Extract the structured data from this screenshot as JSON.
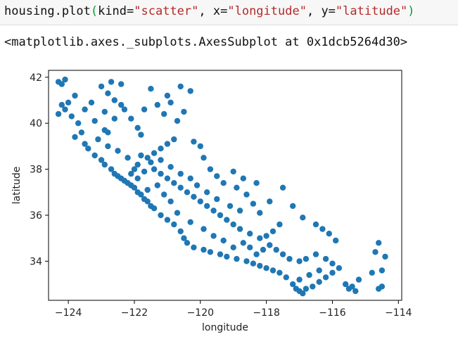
{
  "code_cell": {
    "prefix": "housing.plot",
    "open_paren": "(",
    "kwarg_kind": "kind=",
    "kind_value": "\"scatter\"",
    "comma1": ", ",
    "kwarg_x": "x=",
    "x_value": "\"longitude\"",
    "comma2": ", ",
    "kwarg_y": "y=",
    "y_value": "\"latitude\"",
    "close_paren": ")"
  },
  "output": {
    "text": "<matplotlib.axes._subplots.AxesSubplot at 0x1dcb5264d30>"
  },
  "chart_data": {
    "type": "scatter",
    "xlabel": "longitude",
    "ylabel": "latitude",
    "xlim": [
      -124.6,
      -113.9
    ],
    "ylim": [
      32.3,
      42.3
    ],
    "xticks": [
      -124,
      -122,
      -120,
      -118,
      -116,
      -114
    ],
    "yticks": [
      34,
      36,
      38,
      40,
      42
    ],
    "xtick_labels": [
      "−124",
      "−122",
      "−120",
      "−118",
      "−116",
      "−114"
    ],
    "ytick_labels": [
      "34",
      "36",
      "38",
      "40",
      "42"
    ],
    "marker_color": "#1f77b4",
    "grid": false,
    "series": [
      {
        "points": [
          [
            -124.3,
            41.8
          ],
          [
            -124.2,
            41.7
          ],
          [
            -124.1,
            41.9
          ],
          [
            -124.2,
            40.8
          ],
          [
            -124.3,
            40.4
          ],
          [
            -124.1,
            40.6
          ],
          [
            -124.0,
            40.9
          ],
          [
            -123.8,
            41.2
          ],
          [
            -123.9,
            40.3
          ],
          [
            -123.7,
            40.0
          ],
          [
            -123.6,
            39.6
          ],
          [
            -123.8,
            39.4
          ],
          [
            -123.5,
            39.1
          ],
          [
            -123.4,
            38.9
          ],
          [
            -123.2,
            38.6
          ],
          [
            -123.0,
            38.4
          ],
          [
            -122.9,
            38.2
          ],
          [
            -122.7,
            38.0
          ],
          [
            -122.6,
            37.8
          ],
          [
            -122.5,
            37.7
          ],
          [
            -122.4,
            37.6
          ],
          [
            -122.3,
            37.5
          ],
          [
            -122.2,
            37.4
          ],
          [
            -122.1,
            37.3
          ],
          [
            -122.0,
            37.2
          ],
          [
            -121.9,
            37.0
          ],
          [
            -121.8,
            36.9
          ],
          [
            -121.7,
            36.7
          ],
          [
            -121.6,
            36.6
          ],
          [
            -121.5,
            36.4
          ],
          [
            -121.4,
            36.3
          ],
          [
            -121.2,
            36.0
          ],
          [
            -121.0,
            35.8
          ],
          [
            -120.8,
            35.6
          ],
          [
            -120.6,
            35.3
          ],
          [
            -120.5,
            35.0
          ],
          [
            -120.4,
            34.8
          ],
          [
            -120.2,
            34.6
          ],
          [
            -119.9,
            34.5
          ],
          [
            -119.7,
            34.4
          ],
          [
            -119.4,
            34.3
          ],
          [
            -119.2,
            34.2
          ],
          [
            -118.9,
            34.1
          ],
          [
            -118.6,
            34.0
          ],
          [
            -118.4,
            33.9
          ],
          [
            -118.2,
            33.8
          ],
          [
            -118.0,
            33.7
          ],
          [
            -117.8,
            33.6
          ],
          [
            -117.6,
            33.5
          ],
          [
            -117.4,
            33.3
          ],
          [
            -117.2,
            33.0
          ],
          [
            -117.1,
            32.8
          ],
          [
            -117.0,
            32.7
          ],
          [
            -116.9,
            32.6
          ],
          [
            -116.8,
            32.8
          ],
          [
            -116.6,
            32.9
          ],
          [
            -116.4,
            33.1
          ],
          [
            -116.2,
            33.3
          ],
          [
            -116.0,
            33.5
          ],
          [
            -115.8,
            33.7
          ],
          [
            -115.6,
            33.0
          ],
          [
            -115.5,
            32.8
          ],
          [
            -115.4,
            32.9
          ],
          [
            -115.3,
            32.7
          ],
          [
            -114.6,
            32.8
          ],
          [
            -114.5,
            33.6
          ],
          [
            -114.4,
            34.2
          ],
          [
            -114.6,
            34.8
          ],
          [
            -114.7,
            34.4
          ],
          [
            -115.9,
            34.9
          ],
          [
            -116.1,
            35.2
          ],
          [
            -116.3,
            35.4
          ],
          [
            -116.5,
            35.6
          ],
          [
            -116.9,
            35.9
          ],
          [
            -117.2,
            36.4
          ],
          [
            -117.6,
            35.6
          ],
          [
            -117.8,
            35.3
          ],
          [
            -118.0,
            35.1
          ],
          [
            -118.2,
            35.0
          ],
          [
            -118.5,
            35.2
          ],
          [
            -118.8,
            35.4
          ],
          [
            -119.0,
            35.6
          ],
          [
            -119.2,
            35.8
          ],
          [
            -119.4,
            36.0
          ],
          [
            -119.6,
            36.2
          ],
          [
            -119.8,
            36.4
          ],
          [
            -120.0,
            36.6
          ],
          [
            -120.2,
            36.8
          ],
          [
            -120.4,
            37.0
          ],
          [
            -120.6,
            37.2
          ],
          [
            -120.8,
            37.4
          ],
          [
            -121.0,
            37.6
          ],
          [
            -121.2,
            37.8
          ],
          [
            -121.4,
            38.0
          ],
          [
            -121.5,
            38.3
          ],
          [
            -121.6,
            38.5
          ],
          [
            -121.4,
            38.7
          ],
          [
            -121.2,
            38.9
          ],
          [
            -121.0,
            39.1
          ],
          [
            -120.8,
            39.3
          ],
          [
            -121.8,
            39.5
          ],
          [
            -121.9,
            39.8
          ],
          [
            -122.1,
            40.2
          ],
          [
            -122.3,
            40.6
          ],
          [
            -122.4,
            40.8
          ],
          [
            -122.6,
            41.0
          ],
          [
            -122.8,
            41.3
          ],
          [
            -123.0,
            41.6
          ],
          [
            -122.7,
            41.8
          ],
          [
            -122.4,
            41.7
          ],
          [
            -121.5,
            41.5
          ],
          [
            -121.0,
            41.2
          ],
          [
            -120.6,
            41.6
          ],
          [
            -120.3,
            41.4
          ],
          [
            -120.5,
            40.5
          ],
          [
            -120.7,
            40.1
          ],
          [
            -121.1,
            40.4
          ],
          [
            -120.2,
            39.2
          ],
          [
            -120.0,
            39.0
          ],
          [
            -119.9,
            38.5
          ],
          [
            -119.7,
            38.0
          ],
          [
            -119.5,
            37.7
          ],
          [
            -119.3,
            37.4
          ],
          [
            -118.9,
            37.2
          ],
          [
            -118.6,
            36.9
          ],
          [
            -118.4,
            36.5
          ],
          [
            -118.2,
            36.1
          ],
          [
            -117.9,
            36.6
          ],
          [
            -117.5,
            37.2
          ],
          [
            -118.3,
            37.4
          ],
          [
            -118.7,
            37.6
          ],
          [
            -119.0,
            37.9
          ],
          [
            -122.0,
            38.0
          ],
          [
            -121.9,
            38.2
          ],
          [
            -122.2,
            38.5
          ],
          [
            -122.5,
            38.8
          ],
          [
            -122.8,
            39.0
          ],
          [
            -123.1,
            39.3
          ],
          [
            -122.9,
            39.7
          ],
          [
            -122.6,
            40.2
          ],
          [
            -121.7,
            40.6
          ],
          [
            -121.3,
            40.8
          ],
          [
            -120.9,
            40.9
          ],
          [
            -116.0,
            33.9
          ],
          [
            -116.2,
            34.1
          ],
          [
            -116.5,
            34.3
          ],
          [
            -116.8,
            34.1
          ],
          [
            -117.0,
            34.0
          ],
          [
            -117.3,
            34.1
          ],
          [
            -117.5,
            34.3
          ],
          [
            -117.7,
            34.5
          ],
          [
            -117.9,
            34.7
          ],
          [
            -118.1,
            34.5
          ],
          [
            -118.3,
            34.3
          ],
          [
            -118.5,
            34.6
          ],
          [
            -118.7,
            34.8
          ],
          [
            -116.4,
            33.6
          ],
          [
            -116.7,
            33.4
          ],
          [
            -117.0,
            33.2
          ],
          [
            -115.2,
            33.2
          ],
          [
            -114.8,
            33.5
          ],
          [
            -114.5,
            32.9
          ],
          [
            -123.5,
            40.6
          ],
          [
            -123.3,
            40.9
          ],
          [
            -122.9,
            40.5
          ],
          [
            -123.2,
            40.1
          ],
          [
            -122.8,
            39.6
          ],
          [
            -121.6,
            37.1
          ],
          [
            -121.3,
            37.3
          ],
          [
            -121.1,
            36.9
          ],
          [
            -120.9,
            36.6
          ],
          [
            -120.7,
            36.1
          ],
          [
            -120.3,
            35.7
          ],
          [
            -119.9,
            35.4
          ],
          [
            -119.6,
            35.1
          ],
          [
            -119.3,
            34.9
          ],
          [
            -119.0,
            34.6
          ],
          [
            -121.9,
            37.6
          ],
          [
            -121.7,
            37.9
          ],
          [
            -122.1,
            37.8
          ],
          [
            -121.8,
            38.6
          ],
          [
            -121.2,
            38.4
          ],
          [
            -120.9,
            38.1
          ],
          [
            -120.6,
            37.8
          ],
          [
            -120.3,
            37.6
          ],
          [
            -120.1,
            37.3
          ],
          [
            -119.8,
            37.0
          ],
          [
            -119.5,
            36.7
          ],
          [
            -119.1,
            36.4
          ],
          [
            -118.8,
            36.2
          ]
        ]
      }
    ]
  }
}
